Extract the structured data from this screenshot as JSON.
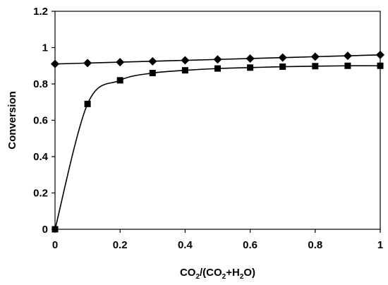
{
  "chart_data": {
    "type": "line",
    "title": "",
    "xlabel": "CO2/(CO2+H2O)",
    "ylabel": "Conversion",
    "xlim": [
      0,
      1
    ],
    "ylim": [
      0,
      1.2
    ],
    "x_ticks": [
      "0",
      "0.2",
      "0.4",
      "0.6",
      "0.8",
      "1"
    ],
    "y_ticks": [
      "0",
      "0.2",
      "0.4",
      "0.6",
      "0.8",
      "1",
      "1.2"
    ],
    "grid": false,
    "legend": "none",
    "series": [
      {
        "marker": "diamond",
        "color": "#000000",
        "x": [
          0,
          0.1,
          0.2,
          0.3,
          0.4,
          0.5,
          0.6,
          0.7,
          0.8,
          0.9,
          1.0
        ],
        "y": [
          0.91,
          0.915,
          0.92,
          0.925,
          0.93,
          0.935,
          0.94,
          0.945,
          0.95,
          0.955,
          0.96
        ]
      },
      {
        "marker": "square",
        "color": "#000000",
        "x": [
          0,
          0.1,
          0.2,
          0.3,
          0.4,
          0.5,
          0.6,
          0.7,
          0.8,
          0.9,
          1.0
        ],
        "y": [
          0.0,
          0.69,
          0.82,
          0.86,
          0.875,
          0.885,
          0.89,
          0.895,
          0.898,
          0.9,
          0.9
        ]
      }
    ]
  }
}
